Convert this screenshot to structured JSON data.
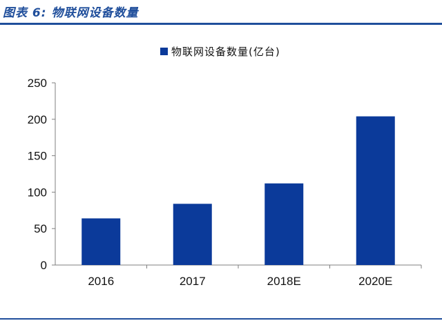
{
  "figure": {
    "title": "图表 6:  物联网设备数量"
  },
  "colors": {
    "accent": "#1f4e9b",
    "bar": "#0b3a9a"
  },
  "chart_data": {
    "type": "bar",
    "categories": [
      "2016",
      "2017",
      "2018E",
      "2020E"
    ],
    "series": [
      {
        "name": "物联网设备数量(亿台)",
        "values": [
          64,
          84,
          112,
          204
        ]
      }
    ],
    "title": "",
    "xlabel": "",
    "ylabel": "",
    "ylim": [
      0,
      250
    ],
    "yticks": [
      0,
      50,
      100,
      150,
      200,
      250
    ],
    "grid": false,
    "legend": "top-center"
  }
}
